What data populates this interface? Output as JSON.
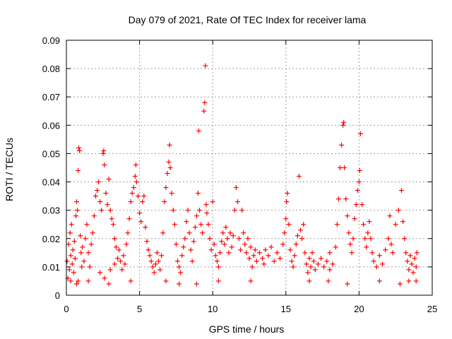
{
  "chart_data": {
    "type": "scatter",
    "title": "Day 079 of 2021, Rate Of TEC Index for receiver lama",
    "xlabel": "GPS time / hours",
    "ylabel": "ROTI / TECUs",
    "xlim": [
      0,
      25
    ],
    "ylim": [
      0,
      0.09
    ],
    "xticks": [
      0,
      5,
      10,
      15,
      20,
      25
    ],
    "xtick_labels": [
      "0",
      "5",
      "10",
      "15",
      "20",
      "25"
    ],
    "yticks": [
      0,
      0.01,
      0.02,
      0.03,
      0.04,
      0.05,
      0.06,
      0.07,
      0.08,
      0.09
    ],
    "ytick_labels": [
      "0",
      "0.01",
      "0.02",
      "0.03",
      "0.04",
      "0.05",
      "0.06",
      "0.07",
      "0.08",
      "0.09"
    ],
    "grid": true,
    "marker": "+",
    "color": "#ff0000",
    "series": [
      {
        "points": [
          [
            0.05,
            0.012
          ],
          [
            0.1,
            0.006
          ],
          [
            0.15,
            0.018
          ],
          [
            0.2,
            0.009
          ],
          [
            0.25,
            0.022
          ],
          [
            0.3,
            0.014
          ],
          [
            0.35,
            0.025
          ],
          [
            0.4,
            0.011
          ],
          [
            0.45,
            0.016
          ],
          [
            0.5,
            0.008
          ],
          [
            0.55,
            0.019
          ],
          [
            0.6,
            0.013
          ],
          [
            0.65,
            0.028
          ],
          [
            0.7,
            0.033
          ],
          [
            0.75,
            0.03
          ],
          [
            0.8,
            0.044
          ],
          [
            0.85,
            0.052
          ],
          [
            0.9,
            0.051
          ],
          [
            0.95,
            0.021
          ],
          [
            1.0,
            0.015
          ],
          [
            0.7,
            0.004
          ],
          [
            0.8,
            0.005
          ],
          [
            1.05,
            0.01
          ],
          [
            1.1,
            0.017
          ],
          [
            1.2,
            0.012
          ],
          [
            1.3,
            0.02
          ],
          [
            1.4,
            0.025
          ],
          [
            1.5,
            0.015
          ],
          [
            1.6,
            0.01
          ],
          [
            1.7,
            0.018
          ],
          [
            1.8,
            0.022
          ],
          [
            1.9,
            0.028
          ],
          [
            2.0,
            0.035
          ],
          [
            2.1,
            0.037
          ],
          [
            2.2,
            0.04
          ],
          [
            2.3,
            0.033
          ],
          [
            2.4,
            0.03
          ],
          [
            2.5,
            0.05
          ],
          [
            2.55,
            0.051
          ],
          [
            2.6,
            0.046
          ],
          [
            2.7,
            0.036
          ],
          [
            2.8,
            0.032
          ],
          [
            2.9,
            0.041
          ],
          [
            3.0,
            0.03
          ],
          [
            3.1,
            0.027
          ],
          [
            3.2,
            0.025
          ],
          [
            3.3,
            0.02
          ],
          [
            3.4,
            0.017
          ],
          [
            3.5,
            0.013
          ],
          [
            3.6,
            0.016
          ],
          [
            2.3,
            0.008
          ],
          [
            2.6,
            0.006
          ],
          [
            3.0,
            0.009
          ],
          [
            3.3,
            0.011
          ],
          [
            3.7,
            0.012
          ],
          [
            3.8,
            0.009
          ],
          [
            3.9,
            0.014
          ],
          [
            4.0,
            0.011
          ],
          [
            4.1,
            0.018
          ],
          [
            4.2,
            0.022
          ],
          [
            4.3,
            0.027
          ],
          [
            4.4,
            0.033
          ],
          [
            4.5,
            0.036
          ],
          [
            4.6,
            0.038
          ],
          [
            4.7,
            0.042
          ],
          [
            4.75,
            0.046
          ],
          [
            4.8,
            0.04
          ],
          [
            4.9,
            0.035
          ],
          [
            5.0,
            0.029
          ],
          [
            5.1,
            0.026
          ],
          [
            5.2,
            0.033
          ],
          [
            5.3,
            0.035
          ],
          [
            5.4,
            0.024
          ],
          [
            5.5,
            0.019
          ],
          [
            5.6,
            0.016
          ],
          [
            5.7,
            0.014
          ],
          [
            5.8,
            0.012
          ],
          [
            5.9,
            0.01
          ],
          [
            6.0,
            0.008
          ],
          [
            6.1,
            0.011
          ],
          [
            6.2,
            0.015
          ],
          [
            6.3,
            0.012
          ],
          [
            6.4,
            0.009
          ],
          [
            6.5,
            0.014
          ],
          [
            6.6,
            0.022
          ],
          [
            6.7,
            0.033
          ],
          [
            6.8,
            0.038
          ],
          [
            6.9,
            0.043
          ],
          [
            7.0,
            0.047
          ],
          [
            7.05,
            0.053
          ],
          [
            7.1,
            0.045
          ],
          [
            7.2,
            0.036
          ],
          [
            7.3,
            0.03
          ],
          [
            7.4,
            0.025
          ],
          [
            7.5,
            0.018
          ],
          [
            7.6,
            0.012
          ],
          [
            7.7,
            0.01
          ],
          [
            7.8,
            0.008
          ],
          [
            7.9,
            0.014
          ],
          [
            8.0,
            0.017
          ],
          [
            8.1,
            0.02
          ],
          [
            8.2,
            0.026
          ],
          [
            8.3,
            0.03
          ],
          [
            8.4,
            0.022
          ],
          [
            8.5,
            0.016
          ],
          [
            8.6,
            0.012
          ],
          [
            8.7,
            0.019
          ],
          [
            8.8,
            0.024
          ],
          [
            8.9,
            0.028
          ],
          [
            9.0,
            0.036
          ],
          [
            9.05,
            0.058
          ],
          [
            9.1,
            0.03
          ],
          [
            9.2,
            0.025
          ],
          [
            9.3,
            0.022
          ],
          [
            9.4,
            0.065
          ],
          [
            9.45,
            0.068
          ],
          [
            9.5,
            0.081
          ],
          [
            9.55,
            0.032
          ],
          [
            9.6,
            0.029
          ],
          [
            9.7,
            0.025
          ],
          [
            9.8,
            0.02
          ],
          [
            9.9,
            0.016
          ],
          [
            10.0,
            0.033
          ],
          [
            10.1,
            0.018
          ],
          [
            10.2,
            0.014
          ],
          [
            10.3,
            0.012
          ],
          [
            10.4,
            0.01
          ],
          [
            10.5,
            0.015
          ],
          [
            10.6,
            0.019
          ],
          [
            10.7,
            0.022
          ],
          [
            10.8,
            0.018
          ],
          [
            10.9,
            0.024
          ],
          [
            11.0,
            0.02
          ],
          [
            11.1,
            0.015
          ],
          [
            11.2,
            0.022
          ],
          [
            11.3,
            0.017
          ],
          [
            11.4,
            0.021
          ],
          [
            11.5,
            0.03
          ],
          [
            11.6,
            0.038
          ],
          [
            11.7,
            0.033
          ],
          [
            11.8,
            0.02
          ],
          [
            11.9,
            0.016
          ],
          [
            12.0,
            0.03
          ],
          [
            12.1,
            0.022
          ],
          [
            12.2,
            0.018
          ],
          [
            12.3,
            0.015
          ],
          [
            12.4,
            0.02
          ],
          [
            12.5,
            0.013
          ],
          [
            12.6,
            0.017
          ],
          [
            12.7,
            0.01
          ],
          [
            12.8,
            0.014
          ],
          [
            12.9,
            0.016
          ],
          [
            13.0,
            0.012
          ],
          [
            13.2,
            0.015
          ],
          [
            13.4,
            0.013
          ],
          [
            13.6,
            0.016
          ],
          [
            13.8,
            0.014
          ],
          [
            14.0,
            0.017
          ],
          [
            14.2,
            0.012
          ],
          [
            14.4,
            0.015
          ],
          [
            14.6,
            0.013
          ],
          [
            14.8,
            0.018
          ],
          [
            14.9,
            0.022
          ],
          [
            15.0,
            0.027
          ],
          [
            15.05,
            0.033
          ],
          [
            15.1,
            0.036
          ],
          [
            15.2,
            0.025
          ],
          [
            15.3,
            0.016
          ],
          [
            15.4,
            0.012
          ],
          [
            15.5,
            0.01
          ],
          [
            15.6,
            0.014
          ],
          [
            15.7,
            0.018
          ],
          [
            15.8,
            0.021
          ],
          [
            15.9,
            0.042
          ],
          [
            16.0,
            0.023
          ],
          [
            16.1,
            0.02
          ],
          [
            16.2,
            0.025
          ],
          [
            16.3,
            0.015
          ],
          [
            16.4,
            0.011
          ],
          [
            16.5,
            0.008
          ],
          [
            16.6,
            0.013
          ],
          [
            16.7,
            0.01
          ],
          [
            16.8,
            0.015
          ],
          [
            16.9,
            0.012
          ],
          [
            17.0,
            0.009
          ],
          [
            17.2,
            0.011
          ],
          [
            17.4,
            0.013
          ],
          [
            17.6,
            0.01
          ],
          [
            17.8,
            0.012
          ],
          [
            18.0,
            0.015
          ],
          [
            18.2,
            0.011
          ],
          [
            18.4,
            0.017
          ],
          [
            18.5,
            0.025
          ],
          [
            18.6,
            0.034
          ],
          [
            18.7,
            0.045
          ],
          [
            18.8,
            0.053
          ],
          [
            18.9,
            0.06
          ],
          [
            18.95,
            0.061
          ],
          [
            19.0,
            0.045
          ],
          [
            19.1,
            0.034
          ],
          [
            19.2,
            0.028
          ],
          [
            19.3,
            0.022
          ],
          [
            19.4,
            0.018
          ],
          [
            19.5,
            0.015
          ],
          [
            19.6,
            0.02
          ],
          [
            19.7,
            0.027
          ],
          [
            19.8,
            0.032
          ],
          [
            19.9,
            0.037
          ],
          [
            20.0,
            0.04
          ],
          [
            20.05,
            0.044
          ],
          [
            20.1,
            0.057
          ],
          [
            20.2,
            0.032
          ],
          [
            20.3,
            0.025
          ],
          [
            20.4,
            0.02
          ],
          [
            20.5,
            0.017
          ],
          [
            20.6,
            0.022
          ],
          [
            20.7,
            0.026
          ],
          [
            20.8,
            0.02
          ],
          [
            20.9,
            0.015
          ],
          [
            21.0,
            0.012
          ],
          [
            21.2,
            0.01
          ],
          [
            21.4,
            0.014
          ],
          [
            21.6,
            0.011
          ],
          [
            21.8,
            0.016
          ],
          [
            22.0,
            0.02
          ],
          [
            22.1,
            0.028
          ],
          [
            22.2,
            0.018
          ],
          [
            22.3,
            0.015
          ],
          [
            22.5,
            0.025
          ],
          [
            22.7,
            0.03
          ],
          [
            22.9,
            0.037
          ],
          [
            23.0,
            0.026
          ],
          [
            23.1,
            0.02
          ],
          [
            23.2,
            0.015
          ],
          [
            23.3,
            0.012
          ],
          [
            23.4,
            0.009
          ],
          [
            23.5,
            0.014
          ],
          [
            23.6,
            0.011
          ],
          [
            23.7,
            0.008
          ],
          [
            23.8,
            0.013
          ],
          [
            23.9,
            0.01
          ],
          [
            23.95,
            0.015
          ],
          [
            0.3,
            0.005
          ],
          [
            1.5,
            0.005
          ],
          [
            2.9,
            0.004
          ],
          [
            4.4,
            0.005
          ],
          [
            6.8,
            0.005
          ],
          [
            7.7,
            0.004
          ],
          [
            8.9,
            0.004
          ],
          [
            10.4,
            0.005
          ],
          [
            12.6,
            0.005
          ],
          [
            16.6,
            0.005
          ],
          [
            17.9,
            0.005
          ],
          [
            19.2,
            0.004
          ],
          [
            21.4,
            0.005
          ],
          [
            22.8,
            0.004
          ],
          [
            23.4,
            0.005
          ],
          [
            23.9,
            0.005
          ],
          [
            18.0,
            0.009
          ],
          [
            13.5,
            0.011
          ]
        ]
      }
    ]
  }
}
